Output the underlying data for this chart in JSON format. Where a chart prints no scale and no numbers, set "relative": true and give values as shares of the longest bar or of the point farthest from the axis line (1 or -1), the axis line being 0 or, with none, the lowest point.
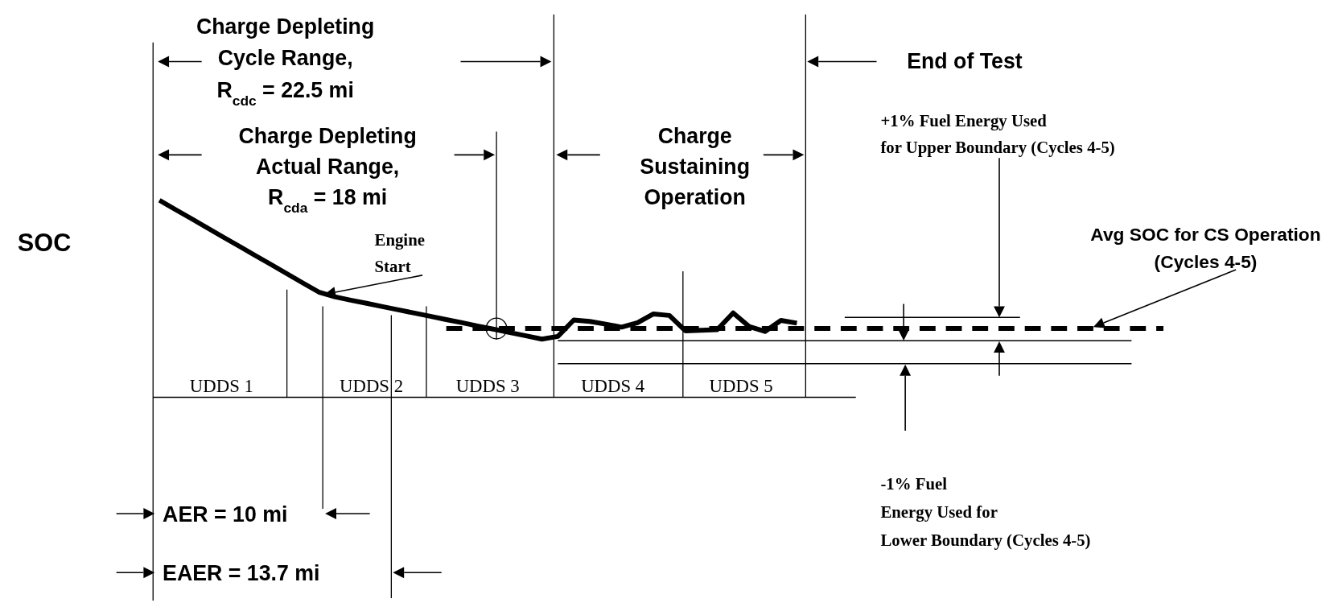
{
  "chart_data": {
    "type": "line",
    "relative": true,
    "ylabel": "SOC",
    "categories": [
      null,
      null,
      null,
      null,
      null,
      null,
      null,
      null,
      null,
      null,
      null,
      null,
      null,
      null,
      null,
      null,
      null,
      null,
      null,
      null,
      null,
      null,
      null,
      null,
      null,
      null,
      null,
      null,
      null,
      null,
      null,
      null,
      null,
      null,
      null,
      null,
      null,
      null,
      null,
      null,
      null,
      null,
      null,
      null,
      null,
      null,
      null,
      null,
      null,
      null,
      null,
      null,
      null,
      null,
      null,
      null,
      null,
      null,
      null,
      null,
      null,
      null,
      null,
      null
    ],
    "series": [
      {
        "color": "#000000",
        "values": [
          1.0,
          0.953,
          0.907,
          0.86,
          0.813,
          0.767,
          0.72,
          0.674,
          0.627,
          0.58,
          0.534,
          0.51,
          0.493,
          0.477,
          0.46,
          0.444,
          0.427,
          0.411,
          0.394,
          0.378,
          0.361,
          0.345,
          0.328,
          0.312,
          0.295,
          0.309,
          0.392,
          0.385,
          0.371,
          0.356,
          0.378,
          0.423,
          0.415,
          0.337,
          0.34,
          0.343,
          0.428,
          0.359,
          0.334,
          0.39,
          0.376,
          null,
          null,
          null,
          null,
          null,
          null,
          null,
          null,
          null,
          null,
          null,
          null,
          null,
          null,
          null,
          null,
          null,
          null,
          null,
          null,
          null,
          null,
          null
        ]
      },
      {
        "color": "#000000",
        "line_style": "dashed",
        "values": [
          null,
          null,
          null,
          null,
          null,
          null,
          null,
          null,
          null,
          null,
          null,
          null,
          null,
          null,
          null,
          null,
          null,
          null,
          0.349,
          0.349,
          0.349,
          0.349,
          0.349,
          0.349,
          0.349,
          0.349,
          0.349,
          0.349,
          0.349,
          0.349,
          0.349,
          0.349,
          0.349,
          0.349,
          0.349,
          0.349,
          0.349,
          0.349,
          0.349,
          0.349,
          0.349,
          0.349,
          0.349,
          0.349,
          0.349,
          0.349,
          0.349,
          0.349,
          0.349,
          0.349,
          0.349,
          0.349,
          0.349,
          0.349,
          0.349,
          0.349,
          0.349,
          0.349,
          0.349,
          0.349,
          0.349,
          0.349,
          0.349,
          0.349
        ]
      },
      {
        "color": "#000000",
        "values": [
          null,
          null,
          null,
          null,
          null,
          null,
          null,
          null,
          null,
          null,
          null,
          null,
          null,
          null,
          null,
          null,
          null,
          null,
          null,
          null,
          null,
          null,
          null,
          null,
          null,
          null,
          null,
          null,
          null,
          null,
          null,
          null,
          null,
          null,
          null,
          null,
          null,
          null,
          null,
          null,
          null,
          null,
          null,
          0.405,
          0.405,
          0.405,
          0.405,
          0.405,
          0.405,
          0.405,
          0.405,
          0.405,
          0.405,
          0.405,
          0.405,
          null,
          null,
          null,
          null,
          null,
          null,
          null,
          null,
          null
        ]
      },
      {
        "color": "#000000",
        "values": [
          null,
          null,
          null,
          null,
          null,
          null,
          null,
          null,
          null,
          null,
          null,
          null,
          null,
          null,
          null,
          null,
          null,
          null,
          null,
          null,
          null,
          null,
          null,
          null,
          null,
          0.287,
          0.287,
          0.287,
          0.287,
          0.287,
          0.287,
          0.287,
          0.287,
          0.287,
          0.287,
          0.287,
          0.287,
          0.287,
          0.287,
          0.287,
          0.287,
          0.287,
          0.287,
          0.287,
          0.287,
          0.287,
          0.287,
          0.287,
          0.287,
          0.287,
          0.287,
          0.287,
          0.287,
          0.287,
          0.287,
          0.287,
          0.287,
          0.287,
          0.287,
          0.287,
          0.287,
          0.287,
          null,
          null
        ]
      },
      {
        "color": "#000000",
        "values": [
          null,
          null,
          null,
          null,
          null,
          null,
          null,
          null,
          null,
          null,
          null,
          null,
          null,
          null,
          null,
          null,
          null,
          null,
          null,
          null,
          null,
          null,
          null,
          null,
          null,
          0.17,
          0.17,
          0.17,
          0.17,
          0.17,
          0.17,
          0.17,
          0.17,
          0.17,
          0.17,
          0.17,
          0.17,
          0.17,
          0.17,
          0.17,
          0.17,
          0.17,
          0.17,
          0.17,
          0.17,
          0.17,
          0.17,
          0.17,
          0.17,
          0.17,
          0.17,
          0.17,
          0.17,
          0.17,
          0.17,
          0.17,
          0.17,
          0.17,
          0.17,
          0.17,
          0.17,
          0.17,
          null,
          null
        ]
      }
    ],
    "annotations": [
      "Charge Depleting\nCycle Range,\nR$_{cdc}$ = 22.5 mi",
      "Charge Depleting\nActual Range,\nR$_{cda}$ = 18 mi",
      "Charge\nSustaining\nOperation",
      "End of Test",
      "+1% Fuel Energy Used\nfor Upper Boundary (Cycles 4-5)",
      "Avg SOC for CS Operation\n(Cycles 4-5)",
      "Engine\nStart",
      "-1% Fuel\nEnergy Used for\nLower Boundary (Cycles 4-5)",
      "AER = 10 mi",
      "EAER = 13.7 mi",
      "UDDS 1",
      "UDDS 2",
      "UDDS 3",
      "UDDS 4",
      "UDDS 5"
    ]
  }
}
